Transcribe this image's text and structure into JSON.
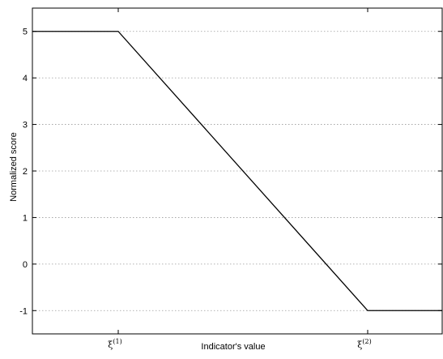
{
  "chart_data": {
    "type": "line",
    "title": "",
    "xlabel": "Indicator's value",
    "ylabel": "Normalized score",
    "ylim": [
      -1.5,
      5.5
    ],
    "y_ticks": [
      "5",
      "4",
      "3",
      "2",
      "1",
      "0",
      "-1"
    ],
    "y_tick_values": [
      5,
      4,
      3,
      2,
      1,
      0,
      -1
    ],
    "x_ticks": [
      {
        "symbol": "ξ",
        "sup": "(1)"
      },
      {
        "symbol": "ξ",
        "sup": "(2)"
      }
    ],
    "grid": {
      "y": true,
      "x": false,
      "style": "dotted"
    },
    "series": [
      {
        "points": [
          {
            "x": "min",
            "y": 5
          },
          {
            "x": "ξ(1)",
            "y": 5
          },
          {
            "x": "ξ(2)",
            "y": -1
          },
          {
            "x": "max",
            "y": -1
          }
        ]
      }
    ]
  }
}
